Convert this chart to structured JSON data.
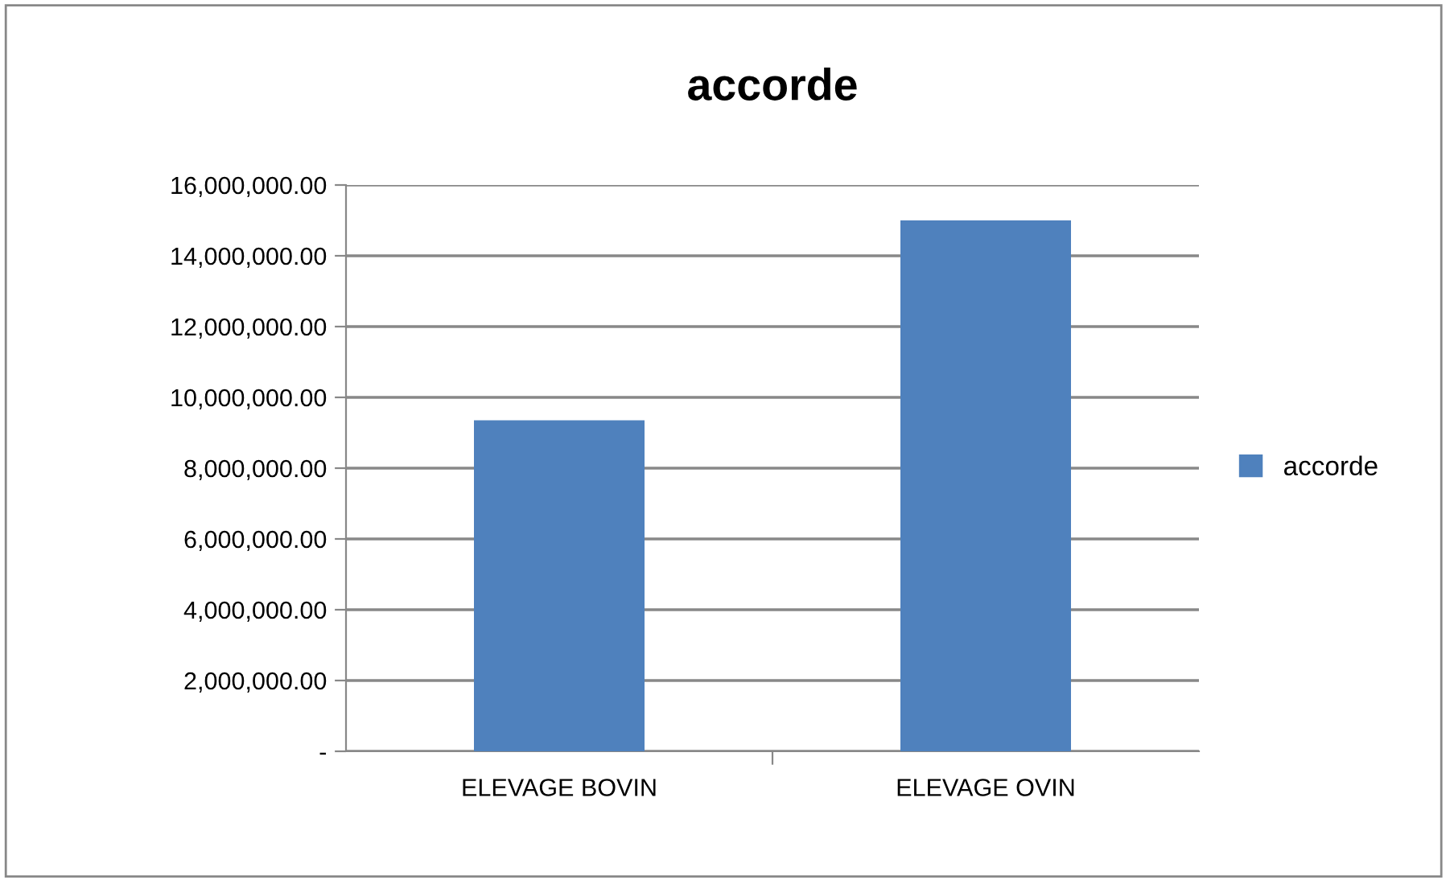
{
  "chart_data": {
    "type": "bar",
    "title": "accorde",
    "categories": [
      "ELEVAGE BOVIN",
      "ELEVAGE OVIN"
    ],
    "series": [
      {
        "name": "accorde",
        "color": "#4f81bd",
        "values": [
          9350000,
          15000000
        ]
      }
    ],
    "ylim": [
      0,
      16000000
    ],
    "yticks": [
      {
        "value": 0,
        "label": "-"
      },
      {
        "value": 2000000,
        "label": "2,000,000.00"
      },
      {
        "value": 4000000,
        "label": "4,000,000.00"
      },
      {
        "value": 6000000,
        "label": "6,000,000.00"
      },
      {
        "value": 8000000,
        "label": "8,000,000.00"
      },
      {
        "value": 10000000,
        "label": "10,000,000.00"
      },
      {
        "value": 12000000,
        "label": "12,000,000.00"
      },
      {
        "value": 14000000,
        "label": "14,000,000.00"
      },
      {
        "value": 16000000,
        "label": "16,000,000.00"
      }
    ],
    "grid": "y",
    "legend": "right"
  }
}
